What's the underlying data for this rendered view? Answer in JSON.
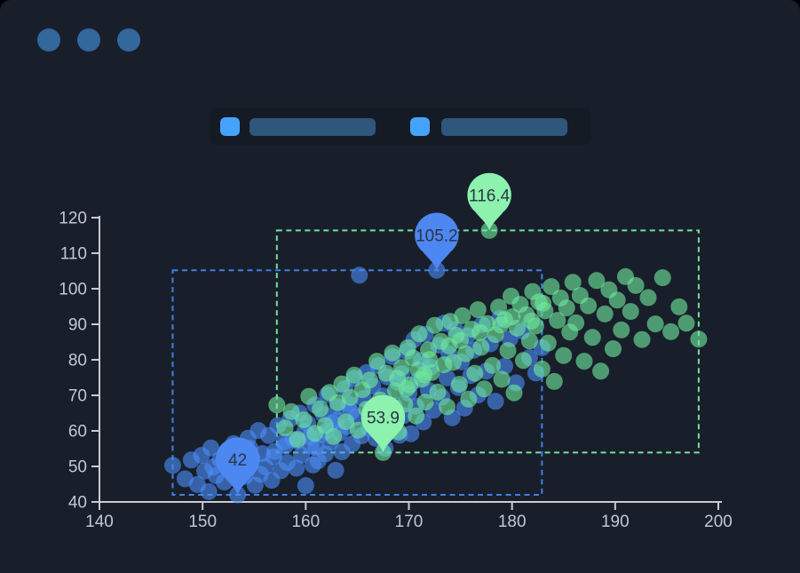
{
  "window": {
    "title": "",
    "dot_color": "#32689c",
    "background": "#191f2a",
    "outer_background": "#000000"
  },
  "legend": {
    "strip_color": "#151b25",
    "items": [
      {
        "swatch_color": "#46a3fc",
        "bar_color": "#2f567c",
        "label": ""
      },
      {
        "swatch_color": "#46a3fc",
        "bar_color": "#2f567c",
        "label": ""
      }
    ]
  },
  "axis_style": {
    "line_color": "#c7ccd4",
    "label_color": "#c2c8d2",
    "label_font_size": 19
  },
  "chart_data": {
    "type": "scatter",
    "title": "",
    "xlabel": "",
    "ylabel": "",
    "xlim": [
      140,
      200
    ],
    "ylim": [
      40,
      120
    ],
    "x_ticks": [
      140,
      150,
      160,
      170,
      180,
      190,
      200
    ],
    "y_ticks": [
      40,
      50,
      60,
      70,
      80,
      90,
      100,
      110,
      120
    ],
    "grid": false,
    "legend_position": "top",
    "point_radius": 9.5,
    "point_opacity": 0.62,
    "pin_label_color": "#2c3542",
    "series": [
      {
        "id": "series-a",
        "name": "",
        "color": "#4b8cf5",
        "pin_color": "#4d87f1",
        "area_color": "#3f80e4",
        "mark_area": {
          "x": [
            147.1,
            182.9
          ],
          "y": [
            42,
            105.2
          ]
        },
        "mark_points": [
          {
            "kind": "max",
            "label": "105.2",
            "x": 172.7,
            "y": 105.2
          },
          {
            "kind": "min",
            "label": "42",
            "x": 153.4,
            "y": 42
          }
        ],
        "points": [
          [
            147.1,
            50.3
          ],
          [
            148.3,
            46.5
          ],
          [
            148.9,
            51.8
          ],
          [
            149.5,
            44.9
          ],
          [
            149.9,
            53.1
          ],
          [
            150.2,
            48.7
          ],
          [
            150.6,
            42.9
          ],
          [
            150.8,
            55.2
          ],
          [
            151.3,
            47.4
          ],
          [
            151.7,
            51.9
          ],
          [
            152.1,
            45.6
          ],
          [
            152.4,
            53.8
          ],
          [
            152.8,
            49.1
          ],
          [
            153.0,
            56.4
          ],
          [
            153.4,
            42.0
          ],
          [
            153.7,
            50.8
          ],
          [
            154.1,
            47.2
          ],
          [
            154.4,
            57.9
          ],
          [
            154.8,
            52.3
          ],
          [
            155.1,
            44.7
          ],
          [
            155.4,
            60.1
          ],
          [
            155.8,
            53.6
          ],
          [
            156.1,
            49.9
          ],
          [
            156.4,
            58.7
          ],
          [
            156.7,
            46.1
          ],
          [
            157.0,
            54.2
          ],
          [
            157.3,
            61.5
          ],
          [
            157.6,
            48.8
          ],
          [
            157.9,
            56.9
          ],
          [
            158.2,
            51.1
          ],
          [
            158.5,
            63.4
          ],
          [
            158.8,
            57.6
          ],
          [
            159.1,
            49.5
          ],
          [
            159.4,
            65.0
          ],
          [
            159.6,
            53.2
          ],
          [
            159.9,
            59.8
          ],
          [
            160.0,
            44.6
          ],
          [
            160.2,
            62.1
          ],
          [
            160.5,
            55.7
          ],
          [
            160.7,
            50.4
          ],
          [
            160.9,
            67.3
          ],
          [
            161.2,
            51.6
          ],
          [
            161.4,
            58.9
          ],
          [
            161.7,
            64.7
          ],
          [
            161.9,
            53.5
          ],
          [
            162.1,
            70.2
          ],
          [
            162.4,
            56.8
          ],
          [
            162.6,
            62.3
          ],
          [
            162.9,
            48.9
          ],
          [
            163.1,
            66.8
          ],
          [
            163.3,
            59.4
          ],
          [
            163.5,
            54.1
          ],
          [
            163.8,
            71.9
          ],
          [
            164.0,
            61.2
          ],
          [
            164.2,
            67.5
          ],
          [
            164.5,
            56.3
          ],
          [
            164.7,
            74.8
          ],
          [
            164.9,
            63.9
          ],
          [
            165.2,
            103.8
          ],
          [
            165.4,
            58.6
          ],
          [
            165.6,
            69.1
          ],
          [
            165.9,
            76.4
          ],
          [
            166.1,
            60.7
          ],
          [
            166.3,
            66.2
          ],
          [
            166.5,
            72.6
          ],
          [
            166.8,
            57.9
          ],
          [
            167.0,
            78.3
          ],
          [
            167.2,
            63.4
          ],
          [
            167.5,
            69.8
          ],
          [
            167.7,
            55.1
          ],
          [
            167.9,
            75.2
          ],
          [
            168.2,
            61.6
          ],
          [
            168.4,
            80.9
          ],
          [
            168.6,
            67.0
          ],
          [
            168.9,
            73.7
          ],
          [
            169.1,
            58.8
          ],
          [
            169.3,
            76.1
          ],
          [
            169.5,
            64.3
          ],
          [
            169.8,
            82.4
          ],
          [
            170.0,
            70.6
          ],
          [
            170.2,
            59.2
          ],
          [
            170.5,
            85.7
          ],
          [
            170.7,
            66.9
          ],
          [
            170.9,
            74.3
          ],
          [
            171.2,
            79.8
          ],
          [
            171.4,
            62.5
          ],
          [
            171.6,
            87.2
          ],
          [
            171.9,
            71.4
          ],
          [
            172.1,
            77.9
          ],
          [
            172.4,
            65.8
          ],
          [
            172.7,
            105.2
          ],
          [
            172.9,
            84.1
          ],
          [
            173.2,
            69.5
          ],
          [
            173.4,
            90.3
          ],
          [
            173.7,
            74.9
          ],
          [
            173.9,
            81.6
          ],
          [
            174.2,
            63.7
          ],
          [
            174.5,
            88.5
          ],
          [
            174.8,
            72.2
          ],
          [
            175.1,
            79.4
          ],
          [
            175.4,
            66.4
          ],
          [
            175.7,
            86.8
          ],
          [
            176.0,
            75.6
          ],
          [
            176.3,
            82.7
          ],
          [
            176.7,
            70.1
          ],
          [
            177.1,
            89.9
          ],
          [
            177.5,
            76.8
          ],
          [
            177.9,
            84.5
          ],
          [
            178.4,
            68.3
          ],
          [
            178.8,
            91.6
          ],
          [
            179.3,
            78.2
          ],
          [
            179.8,
            85.9
          ],
          [
            180.4,
            73.5
          ],
          [
            181.0,
            88.1
          ],
          [
            181.7,
            80.6
          ],
          [
            182.3,
            76.3
          ],
          [
            182.9,
            83.4
          ],
          [
            151.0,
            49.8
          ],
          [
            152.6,
            51.2
          ],
          [
            154.6,
            55.1
          ],
          [
            155.6,
            47.8
          ],
          [
            156.9,
            52.7
          ],
          [
            158.0,
            55.8
          ],
          [
            159.2,
            57.1
          ],
          [
            160.4,
            58.3
          ],
          [
            161.0,
            55.4
          ],
          [
            162.0,
            59.9
          ],
          [
            163.0,
            63.1
          ],
          [
            164.4,
            65.3
          ]
        ]
      },
      {
        "id": "series-b",
        "name": "",
        "color": "#6fe89e",
        "pin_color": "#8cf2ae",
        "area_color": "#70e19c",
        "mark_area": {
          "x": [
            157.2,
            198.1
          ],
          "y": [
            53.9,
            116.4
          ]
        },
        "mark_points": [
          {
            "kind": "max",
            "label": "116.4",
            "x": 177.8,
            "y": 116.4
          },
          {
            "kind": "min",
            "label": "53.9",
            "x": 167.5,
            "y": 53.9
          }
        ],
        "points": [
          [
            157.2,
            67.3
          ],
          [
            158.0,
            60.8
          ],
          [
            158.6,
            65.4
          ],
          [
            159.2,
            57.6
          ],
          [
            159.8,
            63.1
          ],
          [
            160.3,
            69.7
          ],
          [
            160.9,
            59.3
          ],
          [
            161.4,
            66.2
          ],
          [
            161.9,
            61.5
          ],
          [
            162.3,
            70.8
          ],
          [
            162.7,
            58.4
          ],
          [
            163.1,
            67.9
          ],
          [
            163.5,
            73.2
          ],
          [
            163.9,
            62.6
          ],
          [
            164.3,
            69.4
          ],
          [
            164.7,
            75.7
          ],
          [
            165.1,
            60.2
          ],
          [
            165.5,
            71.6
          ],
          [
            165.9,
            66.1
          ],
          [
            166.2,
            74.3
          ],
          [
            166.5,
            63.8
          ],
          [
            166.9,
            79.6
          ],
          [
            167.2,
            68.7
          ],
          [
            167.5,
            53.9
          ],
          [
            167.8,
            76.2
          ],
          [
            168.1,
            65.4
          ],
          [
            168.4,
            81.9
          ],
          [
            168.7,
            71.3
          ],
          [
            169.0,
            59.7
          ],
          [
            169.3,
            77.8
          ],
          [
            169.6,
            67.5
          ],
          [
            169.9,
            83.4
          ],
          [
            170.1,
            72.9
          ],
          [
            170.4,
            80.5
          ],
          [
            170.7,
            64.2
          ],
          [
            171.0,
            87.3
          ],
          [
            171.3,
            74.6
          ],
          [
            171.6,
            68.1
          ],
          [
            171.9,
            82.8
          ],
          [
            172.2,
            76.4
          ],
          [
            172.5,
            89.7
          ],
          [
            172.8,
            70.9
          ],
          [
            173.1,
            85.2
          ],
          [
            173.4,
            78.6
          ],
          [
            173.7,
            66.8
          ],
          [
            174.0,
            90.8
          ],
          [
            174.3,
            79.3
          ],
          [
            174.6,
            86.9
          ],
          [
            174.9,
            73.1
          ],
          [
            175.2,
            92.4
          ],
          [
            175.5,
            81.7
          ],
          [
            175.8,
            68.9
          ],
          [
            176.1,
            88.6
          ],
          [
            176.4,
            76.2
          ],
          [
            176.7,
            94.1
          ],
          [
            177.0,
            83.5
          ],
          [
            177.3,
            71.8
          ],
          [
            177.6,
            90.2
          ],
          [
            177.8,
            116.4
          ],
          [
            178.1,
            78.4
          ],
          [
            178.4,
            87.1
          ],
          [
            178.7,
            94.8
          ],
          [
            179.0,
            74.5
          ],
          [
            179.3,
            91.3
          ],
          [
            179.6,
            82.6
          ],
          [
            179.9,
            97.9
          ],
          [
            180.2,
            70.7
          ],
          [
            180.5,
            88.9
          ],
          [
            180.8,
            95.6
          ],
          [
            181.1,
            79.8
          ],
          [
            181.4,
            92.7
          ],
          [
            181.7,
            85.3
          ],
          [
            182.0,
            99.2
          ],
          [
            182.3,
            89.5
          ],
          [
            182.6,
            96.3
          ],
          [
            182.9,
            77.4
          ],
          [
            183.2,
            93.8
          ],
          [
            183.5,
            84.7
          ],
          [
            183.8,
            100.6
          ],
          [
            184.1,
            73.9
          ],
          [
            184.4,
            91.1
          ],
          [
            184.7,
            97.4
          ],
          [
            185.0,
            81.2
          ],
          [
            185.3,
            94.6
          ],
          [
            185.6,
            87.8
          ],
          [
            185.9,
            101.8
          ],
          [
            186.2,
            90.4
          ],
          [
            186.6,
            98.1
          ],
          [
            187.0,
            79.6
          ],
          [
            187.4,
            95.2
          ],
          [
            187.8,
            86.3
          ],
          [
            188.2,
            102.3
          ],
          [
            188.6,
            76.8
          ],
          [
            189.0,
            92.9
          ],
          [
            189.4,
            99.7
          ],
          [
            189.8,
            83.1
          ],
          [
            190.2,
            96.8
          ],
          [
            190.6,
            88.4
          ],
          [
            191.0,
            103.4
          ],
          [
            191.5,
            93.6
          ],
          [
            192.0,
            100.9
          ],
          [
            192.6,
            85.7
          ],
          [
            193.2,
            97.5
          ],
          [
            193.9,
            90.1
          ],
          [
            194.6,
            103.1
          ],
          [
            195.4,
            87.9
          ],
          [
            196.2,
            94.9
          ],
          [
            196.9,
            90.3
          ],
          [
            198.1,
            85.8
          ],
          [
            168.9,
            74.8
          ],
          [
            170.9,
            77.2
          ],
          [
            172.0,
            80.1
          ],
          [
            173.9,
            83.9
          ],
          [
            175.0,
            85.4
          ],
          [
            176.9,
            87.7
          ],
          [
            178.9,
            89.8
          ],
          [
            180.0,
            92.1
          ],
          [
            181.9,
            90.9
          ],
          [
            183.0,
            95.9
          ],
          [
            169.8,
            71.9
          ],
          [
            171.5,
            75.8
          ]
        ]
      }
    ]
  }
}
